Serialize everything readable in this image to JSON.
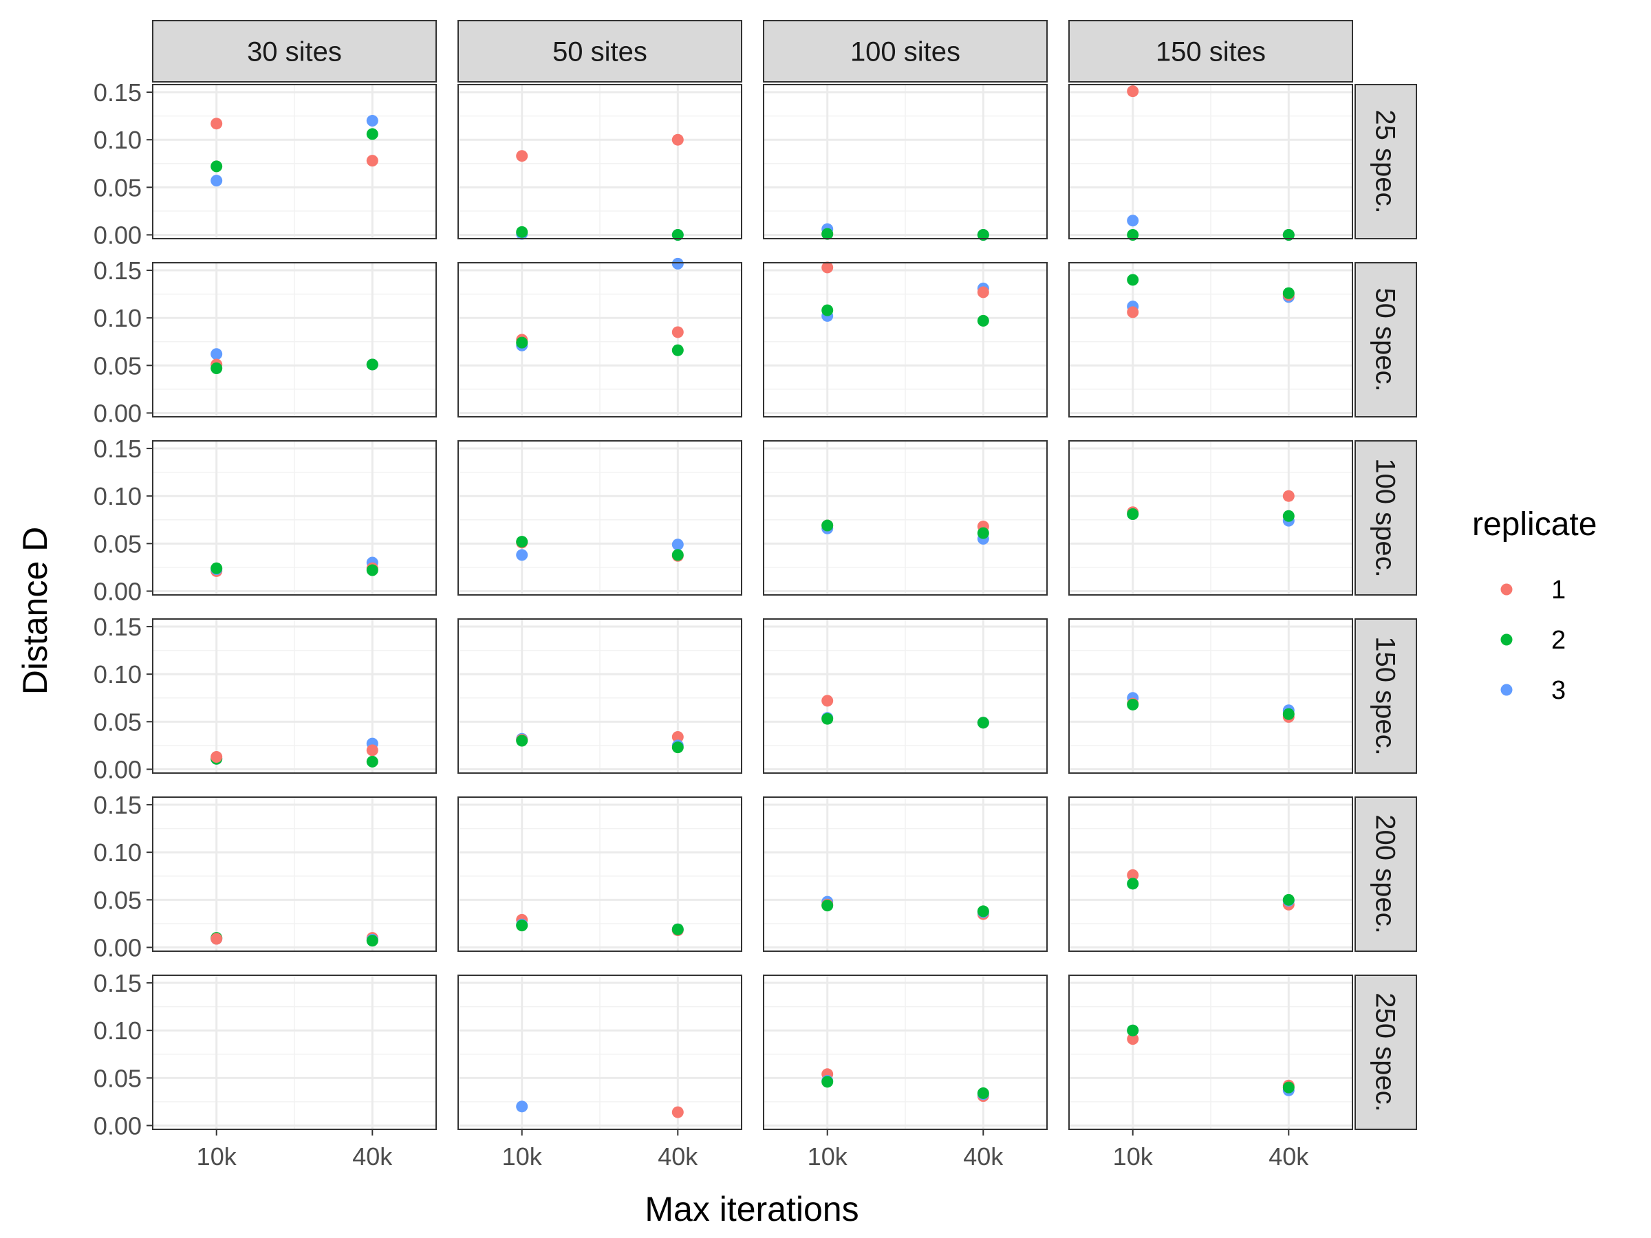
{
  "chart_data": {
    "type": "scatter",
    "xlabel": "Max iterations",
    "ylabel": "Distance D",
    "x_categories": [
      "10k",
      "40k"
    ],
    "ylim": [
      -0.004,
      0.158
    ],
    "y_ticks": [
      0.0,
      0.05,
      0.1,
      0.15
    ],
    "y_tick_labels": [
      "0.00",
      "0.05",
      "0.10",
      "0.15"
    ],
    "grid": true,
    "legend_position": "right",
    "legend": {
      "title": "replicate",
      "entries": [
        {
          "label": "1",
          "color": "#F8766D"
        },
        {
          "label": "2",
          "color": "#00BA38"
        },
        {
          "label": "3",
          "color": "#619CFF"
        }
      ]
    },
    "columns": [
      "30 sites",
      "50 sites",
      "100 sites",
      "150 sites"
    ],
    "rows": [
      "25 spec.",
      "50 spec.",
      "100 spec.",
      "150 spec.",
      "200 spec.",
      "250 spec."
    ],
    "panels": [
      {
        "row": "25 spec.",
        "col": "30 sites",
        "points": [
          {
            "x": "10k",
            "replicate": "1",
            "y": 0.117
          },
          {
            "x": "10k",
            "replicate": "2",
            "y": 0.072
          },
          {
            "x": "10k",
            "replicate": "3",
            "y": 0.057
          },
          {
            "x": "40k",
            "replicate": "1",
            "y": 0.078
          },
          {
            "x": "40k",
            "replicate": "2",
            "y": 0.106
          },
          {
            "x": "40k",
            "replicate": "3",
            "y": 0.12
          }
        ]
      },
      {
        "row": "25 spec.",
        "col": "50 sites",
        "points": [
          {
            "x": "10k",
            "replicate": "1",
            "y": 0.083
          },
          {
            "x": "10k",
            "replicate": "3",
            "y": 0.001
          },
          {
            "x": "10k",
            "replicate": "2",
            "y": 0.003
          },
          {
            "x": "40k",
            "replicate": "1",
            "y": 0.1
          },
          {
            "x": "40k",
            "replicate": "3",
            "y": 0.0
          },
          {
            "x": "40k",
            "replicate": "2",
            "y": 0.0
          }
        ]
      },
      {
        "row": "25 spec.",
        "col": "100 sites",
        "points": [
          {
            "x": "10k",
            "replicate": "1",
            "y": 0.001
          },
          {
            "x": "10k",
            "replicate": "3",
            "y": 0.006
          },
          {
            "x": "10k",
            "replicate": "2",
            "y": 0.001
          },
          {
            "x": "40k",
            "replicate": "1",
            "y": 0.0
          },
          {
            "x": "40k",
            "replicate": "3",
            "y": 0.0
          },
          {
            "x": "40k",
            "replicate": "2",
            "y": 0.0
          }
        ]
      },
      {
        "row": "25 spec.",
        "col": "150 sites",
        "points": [
          {
            "x": "10k",
            "replicate": "1",
            "y": 0.151
          },
          {
            "x": "10k",
            "replicate": "3",
            "y": 0.015
          },
          {
            "x": "10k",
            "replicate": "2",
            "y": 0.0
          },
          {
            "x": "40k",
            "replicate": "1",
            "y": 0.0
          },
          {
            "x": "40k",
            "replicate": "3",
            "y": 0.0
          },
          {
            "x": "40k",
            "replicate": "2",
            "y": 0.0
          }
        ]
      },
      {
        "row": "50 spec.",
        "col": "30 sites",
        "points": [
          {
            "x": "10k",
            "replicate": "3",
            "y": 0.062
          },
          {
            "x": "10k",
            "replicate": "1",
            "y": 0.051
          },
          {
            "x": "10k",
            "replicate": "2",
            "y": 0.047
          },
          {
            "x": "40k",
            "replicate": "1",
            "y": 0.051
          },
          {
            "x": "40k",
            "replicate": "3",
            "y": 0.051
          },
          {
            "x": "40k",
            "replicate": "2",
            "y": 0.051
          }
        ]
      },
      {
        "row": "50 spec.",
        "col": "50 sites",
        "points": [
          {
            "x": "10k",
            "replicate": "1",
            "y": 0.077
          },
          {
            "x": "10k",
            "replicate": "3",
            "y": 0.071
          },
          {
            "x": "10k",
            "replicate": "2",
            "y": 0.074
          },
          {
            "x": "40k",
            "replicate": "3",
            "y": 0.157
          },
          {
            "x": "40k",
            "replicate": "1",
            "y": 0.085
          },
          {
            "x": "40k",
            "replicate": "2",
            "y": 0.066
          }
        ]
      },
      {
        "row": "50 spec.",
        "col": "100 sites",
        "points": [
          {
            "x": "10k",
            "replicate": "1",
            "y": 0.153
          },
          {
            "x": "10k",
            "replicate": "3",
            "y": 0.102
          },
          {
            "x": "10k",
            "replicate": "2",
            "y": 0.108
          },
          {
            "x": "40k",
            "replicate": "3",
            "y": 0.131
          },
          {
            "x": "40k",
            "replicate": "1",
            "y": 0.127
          },
          {
            "x": "40k",
            "replicate": "2",
            "y": 0.097
          }
        ]
      },
      {
        "row": "50 spec.",
        "col": "150 sites",
        "points": [
          {
            "x": "10k",
            "replicate": "2",
            "y": 0.14
          },
          {
            "x": "10k",
            "replicate": "3",
            "y": 0.112
          },
          {
            "x": "10k",
            "replicate": "1",
            "y": 0.106
          },
          {
            "x": "40k",
            "replicate": "3",
            "y": 0.122
          },
          {
            "x": "40k",
            "replicate": "1",
            "y": 0.124
          },
          {
            "x": "40k",
            "replicate": "2",
            "y": 0.126
          }
        ]
      },
      {
        "row": "100 spec.",
        "col": "30 sites",
        "points": [
          {
            "x": "10k",
            "replicate": "1",
            "y": 0.021
          },
          {
            "x": "10k",
            "replicate": "3",
            "y": 0.023
          },
          {
            "x": "10k",
            "replicate": "2",
            "y": 0.024
          },
          {
            "x": "40k",
            "replicate": "3",
            "y": 0.03
          },
          {
            "x": "40k",
            "replicate": "1",
            "y": 0.024
          },
          {
            "x": "40k",
            "replicate": "2",
            "y": 0.022
          }
        ]
      },
      {
        "row": "100 spec.",
        "col": "50 sites",
        "points": [
          {
            "x": "10k",
            "replicate": "3",
            "y": 0.038
          },
          {
            "x": "10k",
            "replicate": "1",
            "y": 0.051
          },
          {
            "x": "10k",
            "replicate": "2",
            "y": 0.052
          },
          {
            "x": "40k",
            "replicate": "3",
            "y": 0.049
          },
          {
            "x": "40k",
            "replicate": "1",
            "y": 0.037
          },
          {
            "x": "40k",
            "replicate": "2",
            "y": 0.038
          }
        ]
      },
      {
        "row": "100 spec.",
        "col": "100 sites",
        "points": [
          {
            "x": "10k",
            "replicate": "3",
            "y": 0.066
          },
          {
            "x": "10k",
            "replicate": "1",
            "y": 0.069
          },
          {
            "x": "10k",
            "replicate": "2",
            "y": 0.069
          },
          {
            "x": "40k",
            "replicate": "1",
            "y": 0.068
          },
          {
            "x": "40k",
            "replicate": "3",
            "y": 0.055
          },
          {
            "x": "40k",
            "replicate": "2",
            "y": 0.061
          }
        ]
      },
      {
        "row": "100 spec.",
        "col": "150 sites",
        "points": [
          {
            "x": "10k",
            "replicate": "1",
            "y": 0.083
          },
          {
            "x": "10k",
            "replicate": "3",
            "y": 0.081
          },
          {
            "x": "10k",
            "replicate": "2",
            "y": 0.081
          },
          {
            "x": "40k",
            "replicate": "1",
            "y": 0.1
          },
          {
            "x": "40k",
            "replicate": "3",
            "y": 0.074
          },
          {
            "x": "40k",
            "replicate": "2",
            "y": 0.079
          }
        ]
      },
      {
        "row": "150 spec.",
        "col": "30 sites",
        "points": [
          {
            "x": "10k",
            "replicate": "3",
            "y": 0.011
          },
          {
            "x": "10k",
            "replicate": "2",
            "y": 0.011
          },
          {
            "x": "10k",
            "replicate": "1",
            "y": 0.013
          },
          {
            "x": "40k",
            "replicate": "3",
            "y": 0.027
          },
          {
            "x": "40k",
            "replicate": "1",
            "y": 0.02
          },
          {
            "x": "40k",
            "replicate": "2",
            "y": 0.008
          }
        ]
      },
      {
        "row": "150 spec.",
        "col": "50 sites",
        "points": [
          {
            "x": "10k",
            "replicate": "3",
            "y": 0.032
          },
          {
            "x": "10k",
            "replicate": "1",
            "y": 0.031
          },
          {
            "x": "10k",
            "replicate": "2",
            "y": 0.03
          },
          {
            "x": "40k",
            "replicate": "1",
            "y": 0.034
          },
          {
            "x": "40k",
            "replicate": "3",
            "y": 0.025
          },
          {
            "x": "40k",
            "replicate": "2",
            "y": 0.023
          }
        ]
      },
      {
        "row": "150 spec.",
        "col": "100 sites",
        "points": [
          {
            "x": "10k",
            "replicate": "1",
            "y": 0.072
          },
          {
            "x": "10k",
            "replicate": "3",
            "y": 0.054
          },
          {
            "x": "10k",
            "replicate": "2",
            "y": 0.053
          },
          {
            "x": "40k",
            "replicate": "1",
            "y": 0.049
          },
          {
            "x": "40k",
            "replicate": "3",
            "y": 0.049
          },
          {
            "x": "40k",
            "replicate": "2",
            "y": 0.049
          }
        ]
      },
      {
        "row": "150 spec.",
        "col": "150 sites",
        "points": [
          {
            "x": "10k",
            "replicate": "3",
            "y": 0.075
          },
          {
            "x": "10k",
            "replicate": "1",
            "y": 0.069
          },
          {
            "x": "10k",
            "replicate": "2",
            "y": 0.068
          },
          {
            "x": "40k",
            "replicate": "3",
            "y": 0.062
          },
          {
            "x": "40k",
            "replicate": "1",
            "y": 0.055
          },
          {
            "x": "40k",
            "replicate": "2",
            "y": 0.058
          }
        ]
      },
      {
        "row": "200 spec.",
        "col": "30 sites",
        "points": [
          {
            "x": "10k",
            "replicate": "3",
            "y": 0.009
          },
          {
            "x": "10k",
            "replicate": "2",
            "y": 0.01
          },
          {
            "x": "10k",
            "replicate": "1",
            "y": 0.009
          },
          {
            "x": "40k",
            "replicate": "1",
            "y": 0.01
          },
          {
            "x": "40k",
            "replicate": "3",
            "y": 0.008
          },
          {
            "x": "40k",
            "replicate": "2",
            "y": 0.007
          }
        ]
      },
      {
        "row": "200 spec.",
        "col": "50 sites",
        "points": [
          {
            "x": "10k",
            "replicate": "1",
            "y": 0.029
          },
          {
            "x": "10k",
            "replicate": "3",
            "y": 0.024
          },
          {
            "x": "10k",
            "replicate": "2",
            "y": 0.023
          },
          {
            "x": "40k",
            "replicate": "1",
            "y": 0.018
          },
          {
            "x": "40k",
            "replicate": "3",
            "y": 0.019
          },
          {
            "x": "40k",
            "replicate": "2",
            "y": 0.019
          }
        ]
      },
      {
        "row": "200 spec.",
        "col": "100 sites",
        "points": [
          {
            "x": "10k",
            "replicate": "3",
            "y": 0.048
          },
          {
            "x": "10k",
            "replicate": "1",
            "y": 0.045
          },
          {
            "x": "10k",
            "replicate": "2",
            "y": 0.044
          },
          {
            "x": "40k",
            "replicate": "1",
            "y": 0.035
          },
          {
            "x": "40k",
            "replicate": "3",
            "y": 0.037
          },
          {
            "x": "40k",
            "replicate": "2",
            "y": 0.038
          }
        ]
      },
      {
        "row": "200 spec.",
        "col": "150 sites",
        "points": [
          {
            "x": "10k",
            "replicate": "1",
            "y": 0.076
          },
          {
            "x": "10k",
            "replicate": "3",
            "y": 0.067
          },
          {
            "x": "10k",
            "replicate": "2",
            "y": 0.067
          },
          {
            "x": "40k",
            "replicate": "1",
            "y": 0.045
          },
          {
            "x": "40k",
            "replicate": "3",
            "y": 0.049
          },
          {
            "x": "40k",
            "replicate": "2",
            "y": 0.05
          }
        ]
      },
      {
        "row": "250 spec.",
        "col": "30 sites",
        "points": []
      },
      {
        "row": "250 spec.",
        "col": "50 sites",
        "points": [
          {
            "x": "10k",
            "replicate": "3",
            "y": 0.02
          },
          {
            "x": "40k",
            "replicate": "1",
            "y": 0.014
          }
        ]
      },
      {
        "row": "250 spec.",
        "col": "100 sites",
        "points": [
          {
            "x": "10k",
            "replicate": "1",
            "y": 0.054
          },
          {
            "x": "10k",
            "replicate": "3",
            "y": 0.047
          },
          {
            "x": "10k",
            "replicate": "2",
            "y": 0.046
          },
          {
            "x": "40k",
            "replicate": "1",
            "y": 0.031
          },
          {
            "x": "40k",
            "replicate": "3",
            "y": 0.033
          },
          {
            "x": "40k",
            "replicate": "2",
            "y": 0.034
          }
        ]
      },
      {
        "row": "250 spec.",
        "col": "150 sites",
        "points": [
          {
            "x": "10k",
            "replicate": "1",
            "y": 0.091
          },
          {
            "x": "10k",
            "replicate": "3",
            "y": 0.1
          },
          {
            "x": "10k",
            "replicate": "2",
            "y": 0.1
          },
          {
            "x": "40k",
            "replicate": "1",
            "y": 0.042
          },
          {
            "x": "40k",
            "replicate": "3",
            "y": 0.037
          },
          {
            "x": "40k",
            "replicate": "2",
            "y": 0.04
          }
        ]
      }
    ]
  }
}
